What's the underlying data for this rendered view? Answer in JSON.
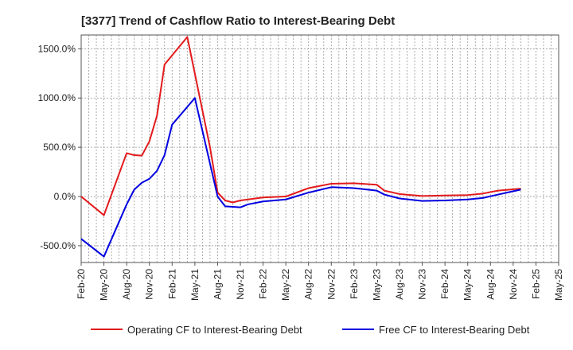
{
  "chart_data": {
    "type": "line",
    "title": "[3377]  Trend of Cashflow Ratio to Interest-Bearing Debt",
    "xlabel": "",
    "ylabel": "",
    "x_tick_labels": [
      "Feb-20",
      "May-20",
      "Aug-20",
      "Nov-20",
      "Feb-21",
      "May-21",
      "Aug-21",
      "Nov-21",
      "Feb-22",
      "May-22",
      "Aug-22",
      "Nov-22",
      "Feb-23",
      "May-23",
      "Aug-23",
      "Nov-23",
      "Feb-24",
      "May-24",
      "Aug-24",
      "Nov-24",
      "Feb-25",
      "May-25"
    ],
    "y_ticks": [
      -500,
      0,
      500,
      1000,
      1500
    ],
    "y_tick_labels": [
      "-500.0%",
      "0.0%",
      "500.0%",
      "1000.0%",
      "1500.0%"
    ],
    "ylim": [
      -670,
      1640
    ],
    "grid": true,
    "legend_position": "bottom",
    "series": [
      {
        "name": "Operating CF to Interest-Bearing Debt",
        "color": "#e31a1c",
        "values": [
          [
            0,
            0
          ],
          [
            3,
            -190
          ],
          [
            6,
            440
          ],
          [
            7,
            420
          ],
          [
            8,
            415
          ],
          [
            9,
            560
          ],
          [
            10,
            820
          ],
          [
            11,
            1340
          ],
          [
            14,
            1620
          ],
          [
            17,
            500
          ],
          [
            18,
            40
          ],
          [
            19,
            -40
          ],
          [
            20,
            -60
          ],
          [
            21,
            -40
          ],
          [
            22,
            -30
          ],
          [
            24,
            -10
          ],
          [
            27,
            0
          ],
          [
            30,
            85
          ],
          [
            33,
            130
          ],
          [
            36,
            135
          ],
          [
            39,
            120
          ],
          [
            40,
            60
          ],
          [
            42,
            25
          ],
          [
            45,
            5
          ],
          [
            48,
            10
          ],
          [
            51,
            15
          ],
          [
            53,
            30
          ],
          [
            55,
            60
          ],
          [
            58,
            80
          ]
        ]
      },
      {
        "name": "Free CF to Interest-Bearing Debt",
        "color": "#0000e0",
        "values": [
          [
            0,
            -430
          ],
          [
            3,
            -610
          ],
          [
            6,
            -80
          ],
          [
            7,
            70
          ],
          [
            8,
            140
          ],
          [
            9,
            180
          ],
          [
            10,
            260
          ],
          [
            11,
            420
          ],
          [
            12,
            730
          ],
          [
            15,
            1000
          ],
          [
            18,
            0
          ],
          [
            19,
            -100
          ],
          [
            21,
            -110
          ],
          [
            22,
            -80
          ],
          [
            24,
            -50
          ],
          [
            27,
            -30
          ],
          [
            30,
            40
          ],
          [
            33,
            95
          ],
          [
            36,
            85
          ],
          [
            39,
            60
          ],
          [
            40,
            20
          ],
          [
            42,
            -20
          ],
          [
            45,
            -45
          ],
          [
            48,
            -40
          ],
          [
            51,
            -30
          ],
          [
            53,
            -15
          ],
          [
            55,
            20
          ],
          [
            58,
            70
          ]
        ]
      }
    ]
  }
}
